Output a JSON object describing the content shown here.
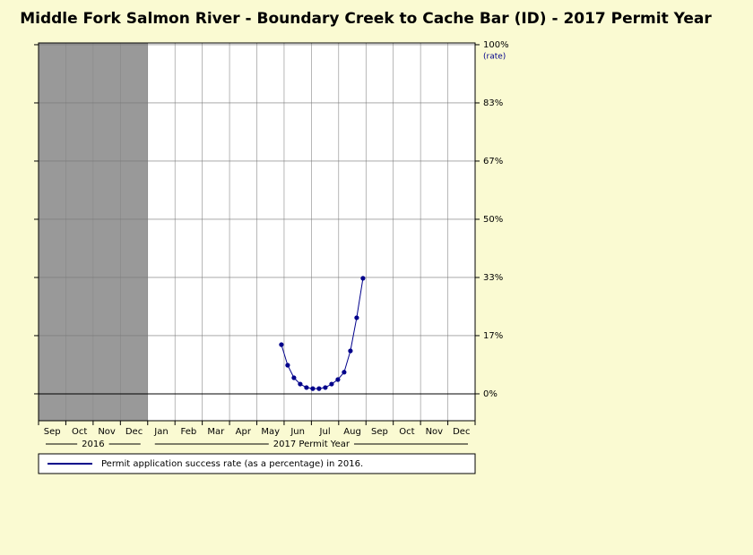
{
  "chart_data": {
    "type": "line",
    "title": "Middle Fork Salmon River - Boundary Creek to Cache Bar (ID) - 2017 Permit Year",
    "y_axis_label": "(rate)",
    "categories": [
      "Sep",
      "Oct",
      "Nov",
      "Dec",
      "Jan",
      "Feb",
      "Mar",
      "Apr",
      "May",
      "Jun",
      "Jul",
      "Aug",
      "Sep",
      "Oct",
      "Nov",
      "Dec"
    ],
    "year_labels": [
      {
        "text": "2016",
        "from": 0,
        "to": 4
      },
      {
        "text": "2017 Permit Year",
        "from": 4,
        "to": 16
      }
    ],
    "shaded": [
      0,
      4
    ],
    "xlim": [
      0,
      16
    ],
    "xticks": [
      0,
      1,
      2,
      3,
      4,
      5,
      6,
      7,
      8,
      9,
      10,
      11,
      12,
      13,
      14,
      15,
      16
    ],
    "ylim": [
      -7.7,
      100.5
    ],
    "yticks": [
      {
        "value": 0,
        "label": "0%"
      },
      {
        "value": 16.67,
        "label": "17%"
      },
      {
        "value": 33.33,
        "label": "33%"
      },
      {
        "value": 50,
        "label": "50%"
      },
      {
        "value": 66.67,
        "label": "67%"
      },
      {
        "value": 83.33,
        "label": "83%"
      },
      {
        "value": 100,
        "label": "100%"
      }
    ],
    "grid": true,
    "series": [
      {
        "name": "Permit application success rate (as a percentage) in 2016.",
        "color": "#00008b",
        "x": [
          8.9,
          9.13,
          9.36,
          9.59,
          9.82,
          10.05,
          10.28,
          10.51,
          10.74,
          10.97,
          11.2,
          11.43,
          11.66,
          11.89
        ],
        "values": [
          14.1,
          8.2,
          4.6,
          2.8,
          1.8,
          1.5,
          1.5,
          1.8,
          2.8,
          4.1,
          6.2,
          12.3,
          21.8,
          33.1
        ]
      }
    ]
  }
}
